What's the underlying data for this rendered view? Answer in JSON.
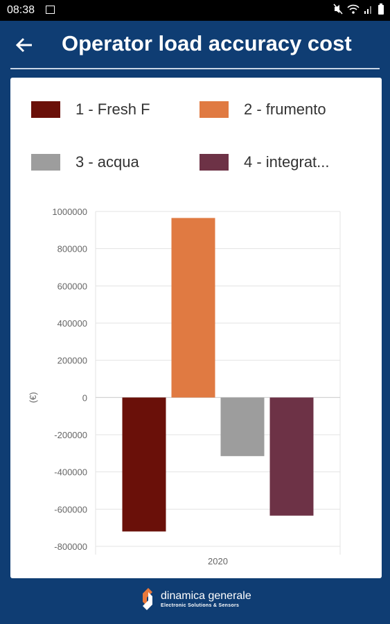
{
  "status_bar": {
    "time": "08:38",
    "icons": [
      "image-notification-icon",
      "mute-icon",
      "wifi-icon",
      "signal-icon",
      "battery-icon"
    ]
  },
  "app_bar": {
    "title": "Operator load accuracy cost",
    "back_icon": "arrow-left-icon"
  },
  "legend": [
    {
      "label": "1 - Fresh F",
      "color": "#6a1009"
    },
    {
      "label": "2 - frumento",
      "color": "#e07a42"
    },
    {
      "label": "3 - acqua",
      "color": "#9d9d9d"
    },
    {
      "label": "4 - integrat...",
      "color": "#6d3246"
    }
  ],
  "chart_data": {
    "type": "bar",
    "categories": [
      "2020"
    ],
    "series": [
      {
        "name": "1 - Fresh F",
        "values": [
          -720000
        ],
        "color": "#6a1009"
      },
      {
        "name": "2 - frumento",
        "values": [
          965000
        ],
        "color": "#e07a42"
      },
      {
        "name": "3 - acqua",
        "values": [
          -315000
        ],
        "color": "#9d9d9d"
      },
      {
        "name": "4 - integrat...",
        "values": [
          -635000
        ],
        "color": "#6d3246"
      }
    ],
    "ylabel": "(€)",
    "xlabel": "",
    "ylim": [
      -800000,
      1000000
    ],
    "yticks": [
      1000000,
      800000,
      600000,
      400000,
      200000,
      0,
      -200000,
      -400000,
      -600000,
      -800000
    ],
    "grid": true,
    "legend_position": "top"
  },
  "footer": {
    "brand": "dinamica generale",
    "tagline": "Electronic Solutions & Sensors",
    "logo_icon": "dinamica-generale-logo-icon"
  }
}
